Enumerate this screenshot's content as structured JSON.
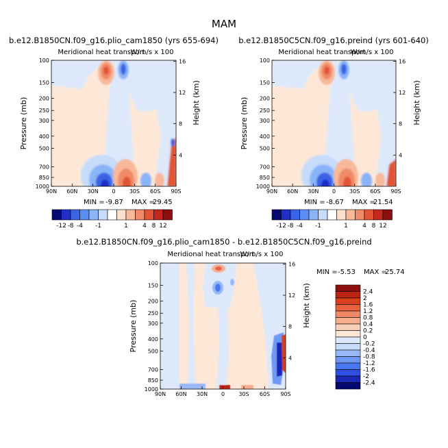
{
  "figure": {
    "title": "MAM"
  },
  "colors": {
    "full_palette": [
      "#050a70",
      "#1f2fc8",
      "#3b63e6",
      "#5a8ef4",
      "#8ab4f8",
      "#c6dcfa",
      "#ffffff",
      "#fde0cc",
      "#f8b89a",
      "#f08a68",
      "#e05536",
      "#c4271c",
      "#8c0f0f"
    ],
    "diff_palette": [
      "#050a70",
      "#1a28b8",
      "#2f4fe0",
      "#4a78f0",
      "#6f98f5",
      "#98b8f8",
      "#c6dcfa",
      "#dde9fb",
      "#fde8d8",
      "#fbd0b8",
      "#f6ae8f",
      "#ee8866",
      "#e6623f",
      "#d8401f",
      "#bc2414",
      "#8c0f0f"
    ]
  },
  "chart_data": [
    {
      "type": "heatmap",
      "id": "panel1",
      "header": "b.e12.B1850CN.f09_g16.plio_cam1850 (yrs 655-694)",
      "title": "Meridional heat transport",
      "units_right": "W/m/s x 100",
      "ylabel": "Pressure (mb)",
      "ylabel_right": "Height (km)",
      "x_ticks": [
        "90N",
        "60N",
        "30N",
        "0",
        "30S",
        "60S",
        "90S"
      ],
      "y_ticks": [
        "100",
        "150",
        "200",
        "250",
        "300",
        "400",
        "500",
        "700",
        "850",
        "1000"
      ],
      "height_ticks": [
        "16",
        "12",
        "8",
        "4"
      ],
      "min_label": "MIN =",
      "min_value": "-9.87",
      "max_label": "MAX =",
      "max_value": "29.45",
      "colorbar_labels": [
        "-12",
        "-8",
        "-4",
        "-1",
        "1",
        "4",
        "8",
        "12"
      ]
    },
    {
      "type": "heatmap",
      "id": "panel2",
      "header": "b.e12.B1850C5CN.f09_g16.preind (yrs 601-640)",
      "title": "Meridional heat transport",
      "units_right": "W/m/s x 100",
      "ylabel": "Pressure (mb)",
      "ylabel_right": "Height (km)",
      "x_ticks": [
        "90N",
        "60N",
        "30N",
        "0",
        "30S",
        "60S",
        "90S"
      ],
      "y_ticks": [
        "100",
        "150",
        "200",
        "250",
        "300",
        "400",
        "500",
        "700",
        "850",
        "1000"
      ],
      "height_ticks": [
        "16",
        "12",
        "8",
        "4"
      ],
      "min_label": "MIN =",
      "min_value": "-8.67",
      "max_label": "MAX =",
      "max_value": "21.54",
      "colorbar_labels": [
        "-12",
        "-8",
        "-4",
        "-1",
        "1",
        "4",
        "8",
        "12"
      ]
    },
    {
      "type": "heatmap",
      "id": "panel3",
      "header": "b.e12.B1850CN.f09_g16.plio_cam1850 - b.e12.B1850C5CN.f09_g16.preind",
      "title": "Meridional heat transport",
      "units_right": "W/m/s x 100",
      "ylabel": "Pressure (mb)",
      "ylabel_right": "Height (km)",
      "x_ticks": [
        "90N",
        "60N",
        "30N",
        "0",
        "30S",
        "60S",
        "90S"
      ],
      "y_ticks": [
        "100",
        "150",
        "200",
        "250",
        "300",
        "400",
        "500",
        "700",
        "850",
        "1000"
      ],
      "height_ticks": [
        "16",
        "12",
        "8",
        "4"
      ],
      "min_label": "MIN =",
      "min_value": "-5.53",
      "max_label": "MAX =",
      "max_value": "25.74",
      "colorbar_labels": [
        "2.4",
        "2",
        "1.6",
        "1.2",
        "0.8",
        "0.4",
        "0.2",
        "0",
        "-0.2",
        "-0.4",
        "-0.8",
        "-1.2",
        "-1.6",
        "-2",
        "-2.4"
      ]
    }
  ]
}
